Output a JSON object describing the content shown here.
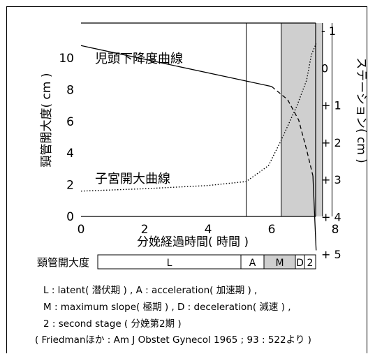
{
  "chart_data": {
    "type": "line",
    "xlabel": "分娩経過時間( 時間 )",
    "ylabel": "頸管開大度( cm )",
    "y2label": "ステーション( cm )",
    "x_ticks": [
      {
        "v": 0,
        "label": "0"
      },
      {
        "v": 2,
        "label": "2"
      },
      {
        "v": 4,
        "label": "4"
      },
      {
        "v": 6,
        "label": "6"
      },
      {
        "v": 8,
        "label": "8"
      }
    ],
    "xlim": [
      0,
      7.4
    ],
    "ylim": [
      0,
      12.2
    ],
    "y_ticks": [
      {
        "v": 0,
        "label": "0"
      },
      {
        "v": 2,
        "label": "2"
      },
      {
        "v": 4,
        "label": "4"
      },
      {
        "v": 6,
        "label": "6"
      },
      {
        "v": 8,
        "label": "8"
      },
      {
        "v": 10,
        "label": "10"
      }
    ],
    "y2_ticks": [
      {
        "v": -1,
        "label": "- 1"
      },
      {
        "v": 0,
        "label": "0"
      },
      {
        "v": 1,
        "label": "+ 1"
      },
      {
        "v": 2,
        "label": "+ 2"
      },
      {
        "v": 3,
        "label": "+ 3"
      },
      {
        "v": 4,
        "label": "+ 4"
      },
      {
        "v": 5,
        "label": "+ 5"
      }
    ],
    "y2lim": [
      -1.35,
      5.1
    ],
    "phase_boundaries": [
      5.2,
      6.3,
      7.6,
      7.9
    ],
    "shaded_phase": [
      6.3,
      7.6
    ],
    "series": [
      {
        "name": "児頭下降度曲線",
        "axis": "right",
        "style": "solid",
        "points": [
          {
            "x": 0,
            "y": -0.6
          },
          {
            "x": 6.0,
            "y": 0.5
          }
        ],
        "dashed_points": [
          {
            "x": 6.0,
            "y": 0.5
          },
          {
            "x": 6.5,
            "y": 0.85
          },
          {
            "x": 6.85,
            "y": 1.4
          },
          {
            "x": 7.1,
            "y": 2.2
          },
          {
            "x": 7.3,
            "y": 2.9
          }
        ],
        "solid_tail": [
          {
            "x": 7.3,
            "y": 2.9
          },
          {
            "x": 7.4,
            "y": 4.9
          }
        ]
      },
      {
        "name": "子宮開大曲線",
        "axis": "left",
        "style": "dotted",
        "points": [
          {
            "x": 0,
            "y": 1.6
          },
          {
            "x": 2,
            "y": 1.75
          },
          {
            "x": 4,
            "y": 1.95
          },
          {
            "x": 5.2,
            "y": 2.2
          },
          {
            "x": 5.9,
            "y": 3.2
          },
          {
            "x": 6.3,
            "y": 4.8
          },
          {
            "x": 6.8,
            "y": 7.0
          },
          {
            "x": 7.1,
            "y": 8.6
          },
          {
            "x": 7.25,
            "y": 10.2
          },
          {
            "x": 7.4,
            "y": 10.9
          }
        ]
      }
    ],
    "phase_bar": {
      "label": "頸管開大度",
      "segments": [
        {
          "label": "L",
          "shaded": false
        },
        {
          "label": "A",
          "shaded": false
        },
        {
          "label": "M",
          "shaded": true
        },
        {
          "label": "D",
          "shaded": false
        },
        {
          "label": "2",
          "shaded": false
        }
      ]
    },
    "legend_lines": [
      "L : latent( 潜伏期 ) , A : acceleration( 加速期 ) ,",
      "M : maximum slope( 極期 ) , D : deceleration( 減速 ) ,",
      "2 : second stage ( 分娩第2期 )",
      "( Friedmanほか : Am J Obstet Gynecol 1965 ; 93 : 522より )"
    ]
  }
}
